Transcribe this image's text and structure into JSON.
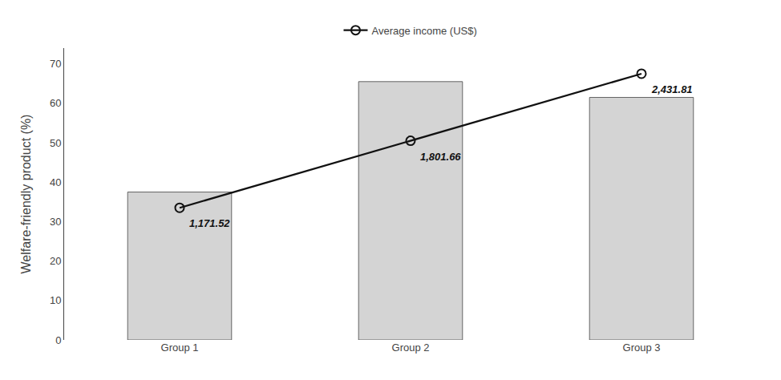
{
  "chart_data": {
    "type": "bar",
    "categories": [
      "Group 1",
      "Group 2",
      "Group 3"
    ],
    "series": [
      {
        "type": "bar",
        "color": "#d4d4d4",
        "values": [
          37.5,
          65.5,
          61.5
        ]
      },
      {
        "type": "line",
        "name": "Average income (US$)",
        "color": "#111111",
        "marker": "circle-open",
        "values": [
          33.5,
          50.5,
          67.5
        ]
      }
    ],
    "annotations": [
      {
        "x": "Group 1",
        "text": "1,171.52"
      },
      {
        "x": "Group 2",
        "text": "1,801.66"
      },
      {
        "x": "Group 3",
        "text": "2,431.81"
      }
    ],
    "ylabel": "Welfare-friendly product (%)",
    "ylim": [
      0,
      74
    ],
    "yticks": [
      0,
      10,
      20,
      30,
      40,
      50,
      60,
      70
    ],
    "grid": false,
    "legend": "top"
  }
}
